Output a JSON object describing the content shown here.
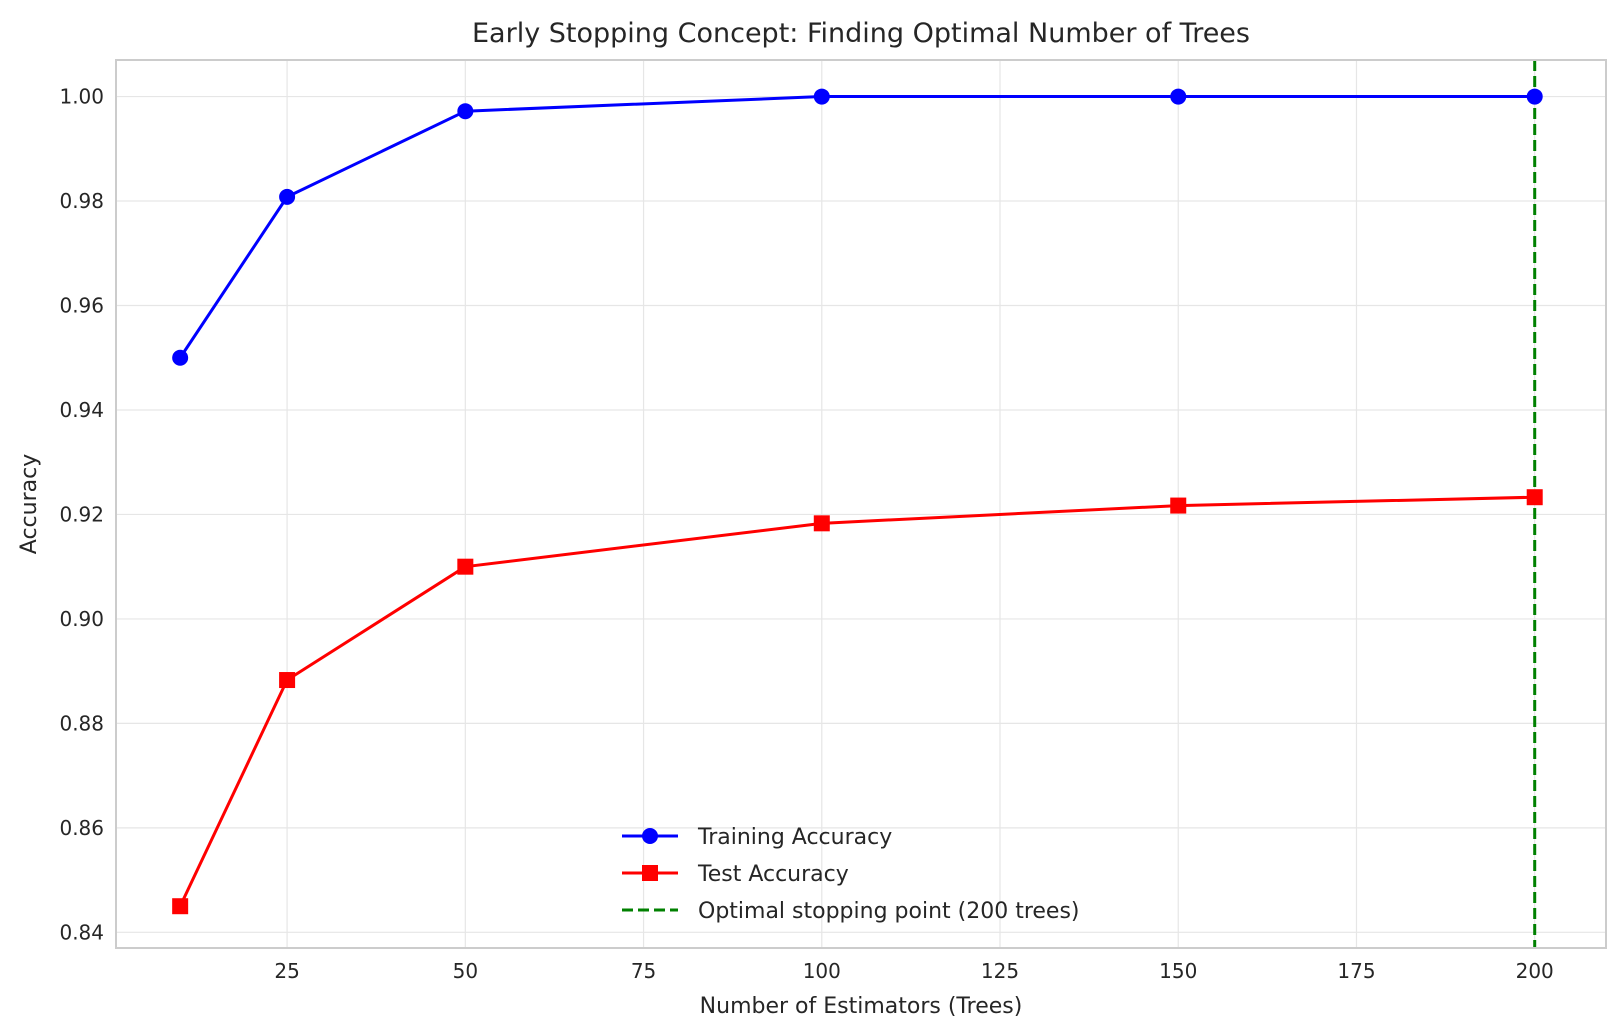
{
  "chart_data": {
    "type": "line",
    "title": "Early Stopping Concept: Finding Optimal Number of Trees",
    "xlabel": "Number of Estimators (Trees)",
    "ylabel": "Accuracy",
    "x": [
      10,
      25,
      50,
      100,
      150,
      200
    ],
    "xlim": [
      1,
      210
    ],
    "ylim": [
      0.837,
      1.007
    ],
    "xticks": [
      25,
      50,
      75,
      100,
      125,
      150,
      175,
      200
    ],
    "xtick_labels": [
      "25",
      "50",
      "75",
      "100",
      "125",
      "150",
      "175",
      "200"
    ],
    "yticks": [
      0.84,
      0.86,
      0.88,
      0.9,
      0.92,
      0.94,
      0.96,
      0.98,
      1.0
    ],
    "ytick_labels": [
      "0.84",
      "0.86",
      "0.88",
      "0.90",
      "0.92",
      "0.94",
      "0.96",
      "0.98",
      "1.00"
    ],
    "grid": true,
    "legend_position": "bottom-center",
    "series": [
      {
        "name": "Training Accuracy",
        "values": [
          0.95,
          0.9808,
          0.9972,
          1.0,
          1.0,
          1.0
        ],
        "color": "#0000ff",
        "marker": "circle"
      },
      {
        "name": "Test Accuracy",
        "values": [
          0.845,
          0.8883,
          0.91,
          0.9183,
          0.9217,
          0.9233
        ],
        "color": "#ff0000",
        "marker": "square"
      }
    ],
    "vline": {
      "x": 200,
      "name": "Optimal stopping point (200 trees)",
      "color": "#008000",
      "style": "dashed"
    }
  }
}
